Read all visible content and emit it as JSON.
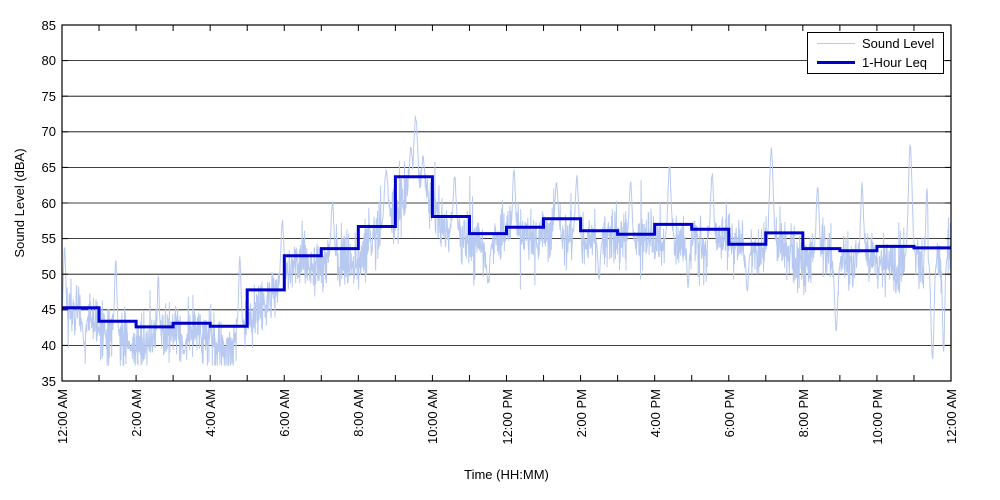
{
  "figure": {
    "background": "#ffffff",
    "border_color": "#000000"
  },
  "chart_data": {
    "type": "line",
    "title": "",
    "xlabel": "Time (HH:MM)",
    "ylabel": "Sound Level (dBA)",
    "xlim_hours": [
      0,
      24
    ],
    "ylim": [
      35,
      85
    ],
    "y_ticks": [
      35,
      40,
      45,
      50,
      55,
      60,
      65,
      70,
      75,
      80,
      85
    ],
    "x_ticks": {
      "minor_every_hours": 1,
      "label_every_hours": 2,
      "labels": [
        "12:00 AM",
        "2:00 AM",
        "4:00 AM",
        "6:00 AM",
        "8:00 AM",
        "10:00 AM",
        "12:00 PM",
        "2:00 PM",
        "4:00 PM",
        "6:00 PM",
        "8:00 PM",
        "10:00 PM",
        "12:00 AM"
      ]
    },
    "grid": {
      "horizontal": true,
      "vertical": false,
      "color": "#000000"
    },
    "legend": {
      "position": "top-right-inside"
    },
    "series": [
      {
        "name": "Sound Level",
        "color": "#b7c9f0",
        "line_width": 1,
        "kind": "noisy_fine_trace",
        "approx_range_dBA": [
          38,
          72
        ],
        "noise_model": {
          "seed": 20240601,
          "points_per_hour": 120,
          "mean_offset_dBA": -1.6,
          "std_dBA": 2.0,
          "spike_events": [
            {
              "t": 0.07,
              "v": 54.0,
              "w": 0.03
            },
            {
              "t": 0.6,
              "v": 39.8,
              "w": 0.03
            },
            {
              "t": 1.45,
              "v": 52.0,
              "w": 0.03
            },
            {
              "t": 1.85,
              "v": 39.2,
              "w": 0.03
            },
            {
              "t": 2.6,
              "v": 50.0,
              "w": 0.025
            },
            {
              "t": 3.3,
              "v": 38.8,
              "w": 0.03
            },
            {
              "t": 4.4,
              "v": 39.3,
              "w": 0.03
            },
            {
              "t": 4.8,
              "v": 52.5,
              "w": 0.03
            },
            {
              "t": 5.95,
              "v": 57.5,
              "w": 0.04
            },
            {
              "t": 7.3,
              "v": 60.0,
              "w": 0.04
            },
            {
              "t": 8.75,
              "v": 64.5,
              "w": 0.05
            },
            {
              "t": 9.42,
              "v": 68.0,
              "w": 0.04
            },
            {
              "t": 9.55,
              "v": 72.0,
              "w": 0.05
            },
            {
              "t": 9.75,
              "v": 66.5,
              "w": 0.04
            },
            {
              "t": 10.6,
              "v": 63.5,
              "w": 0.04
            },
            {
              "t": 11.5,
              "v": 48.5,
              "w": 0.04
            },
            {
              "t": 12.2,
              "v": 64.5,
              "w": 0.04
            },
            {
              "t": 13.35,
              "v": 63.0,
              "w": 0.04
            },
            {
              "t": 13.9,
              "v": 63.5,
              "w": 0.04
            },
            {
              "t": 14.5,
              "v": 49.0,
              "w": 0.03
            },
            {
              "t": 15.35,
              "v": 63.0,
              "w": 0.04
            },
            {
              "t": 16.4,
              "v": 65.0,
              "w": 0.04
            },
            {
              "t": 16.9,
              "v": 48.0,
              "w": 0.03
            },
            {
              "t": 17.55,
              "v": 64.0,
              "w": 0.04
            },
            {
              "t": 18.5,
              "v": 47.5,
              "w": 0.03
            },
            {
              "t": 19.15,
              "v": 67.5,
              "w": 0.05
            },
            {
              "t": 20.4,
              "v": 62.0,
              "w": 0.04
            },
            {
              "t": 20.9,
              "v": 42.0,
              "w": 0.04
            },
            {
              "t": 21.6,
              "v": 62.5,
              "w": 0.04
            },
            {
              "t": 22.9,
              "v": 68.0,
              "w": 0.05
            },
            {
              "t": 23.35,
              "v": 62.0,
              "w": 0.03
            },
            {
              "t": 23.5,
              "v": 37.8,
              "w": 0.04
            },
            {
              "t": 23.8,
              "v": 39.0,
              "w": 0.03
            }
          ]
        }
      },
      {
        "name": "1-Hour Leq",
        "color": "#0000cc",
        "line_width": 3,
        "kind": "hourly_step",
        "hours": [
          0,
          1,
          2,
          3,
          4,
          5,
          6,
          7,
          8,
          9,
          10,
          11,
          12,
          13,
          14,
          15,
          16,
          17,
          18,
          19,
          20,
          21,
          22,
          23
        ],
        "hourly_leq_dBA": [
          45.3,
          43.4,
          42.6,
          43.1,
          42.7,
          47.8,
          52.6,
          53.6,
          56.7,
          63.7,
          58.1,
          55.7,
          56.6,
          57.8,
          56.1,
          55.6,
          57.0,
          56.3,
          54.2,
          55.8,
          53.6,
          53.3,
          53.9,
          53.7
        ]
      }
    ]
  }
}
